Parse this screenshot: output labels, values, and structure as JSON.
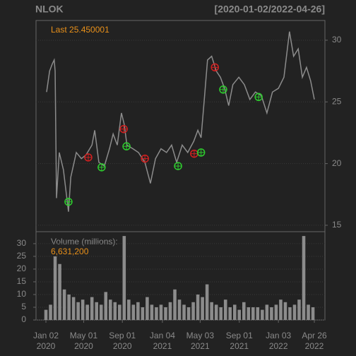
{
  "chart_data": [
    {
      "type": "line",
      "title": "NLOK",
      "subtitle": "[2020-01-02/2022-04-26]",
      "annotation": "Last 25.450001",
      "xlim": [
        -21.5,
        606
      ],
      "ylim": [
        14.48,
        31.6
      ],
      "yticks": [
        15,
        20,
        25,
        30
      ],
      "grid": true,
      "color": "#8c8c8c",
      "x": [
        1.5,
        8,
        14,
        18,
        20,
        23,
        29,
        38,
        49,
        54,
        66,
        77,
        87,
        100,
        106,
        115,
        127,
        138,
        146,
        155,
        164,
        170,
        176,
        189,
        201,
        215,
        227,
        238,
        250,
        262,
        273,
        284,
        296,
        308,
        321,
        330,
        337,
        344,
        351,
        360,
        370,
        379,
        388,
        397,
        406,
        419,
        431,
        443,
        455,
        468,
        480,
        492,
        505,
        517,
        529,
        538,
        548,
        557,
        566,
        575,
        583
      ],
      "values": [
        25.8,
        27.5,
        28.1,
        28.4,
        27.5,
        17.2,
        20.9,
        19.5,
        16.1,
        18.9,
        20.9,
        20.4,
        20.7,
        21.5,
        22.7,
        20.1,
        19.8,
        21.2,
        22.4,
        21.5,
        24.1,
        23.2,
        21.5,
        21.2,
        20.9,
        20.1,
        18.4,
        20.4,
        21.2,
        20.9,
        21.5,
        20.1,
        21.5,
        20.9,
        21.8,
        22.7,
        22.1,
        25.2,
        28.4,
        28.7,
        27.5,
        27.0,
        26.1,
        24.7,
        26.4,
        27.0,
        26.4,
        25.2,
        25.8,
        25.5,
        24.1,
        25.8,
        26.1,
        27.0,
        30.7,
        28.7,
        29.3,
        27.0,
        27.8,
        26.7,
        25.2
      ],
      "signals": [
        {
          "color": "#d42020",
          "x": [
            92,
            169,
            215,
            322,
            367
          ],
          "values": [
            20.5,
            22.8,
            20.4,
            20.8,
            27.8
          ]
        },
        {
          "color": "#2ecc2e",
          "x": [
            49,
            121,
            175,
            287,
            337,
            385,
            462
          ],
          "values": [
            16.9,
            19.7,
            21.4,
            19.8,
            20.9,
            26.0,
            25.4
          ]
        }
      ]
    },
    {
      "type": "bar",
      "annotation": "Volume (millions):",
      "annotation_value": "6,631,200",
      "xlim": [
        -21.5,
        606
      ],
      "ylim": [
        0,
        34.7
      ],
      "yticks": [
        0,
        5,
        10,
        15,
        20,
        25,
        30
      ],
      "grid": true,
      "color": "#8c8c8c",
      "xticks": [
        {
          "value": 0,
          "label": "Jan 02\n2020"
        },
        {
          "value": 82,
          "label": "May 01\n2020"
        },
        {
          "value": 166,
          "label": "Sep 01\n2020"
        },
        {
          "value": 253,
          "label": "Jan 04\n2021"
        },
        {
          "value": 335,
          "label": "May 03\n2021"
        },
        {
          "value": 420,
          "label": "Sep 01\n2021"
        },
        {
          "value": 505,
          "label": "Jan 03\n2022"
        },
        {
          "value": 583,
          "label": "Apr 26\n2022"
        }
      ],
      "x": [
        0,
        10,
        20,
        30,
        40,
        50,
        60,
        70,
        80,
        90,
        100,
        110,
        120,
        130,
        140,
        150,
        160,
        170,
        180,
        190,
        200,
        210,
        220,
        230,
        240,
        250,
        260,
        270,
        280,
        290,
        300,
        310,
        320,
        330,
        340,
        350,
        360,
        370,
        380,
        390,
        400,
        410,
        420,
        430,
        440,
        450,
        460,
        470,
        480,
        490,
        500,
        510,
        520,
        530,
        540,
        550,
        560,
        570,
        580
      ],
      "values": [
        4,
        6,
        25,
        22,
        12,
        10,
        9,
        7,
        8,
        6,
        9,
        7,
        6,
        11,
        8,
        7,
        6,
        33,
        8,
        6,
        7,
        5,
        9,
        6,
        5,
        6,
        5,
        7,
        12,
        8,
        6,
        5,
        7,
        10,
        9,
        14,
        7,
        6,
        5,
        8,
        5,
        6,
        4,
        7,
        5,
        5,
        5,
        4,
        6,
        5,
        6,
        8,
        7,
        5,
        6,
        8,
        33,
        6,
        5
      ]
    }
  ]
}
